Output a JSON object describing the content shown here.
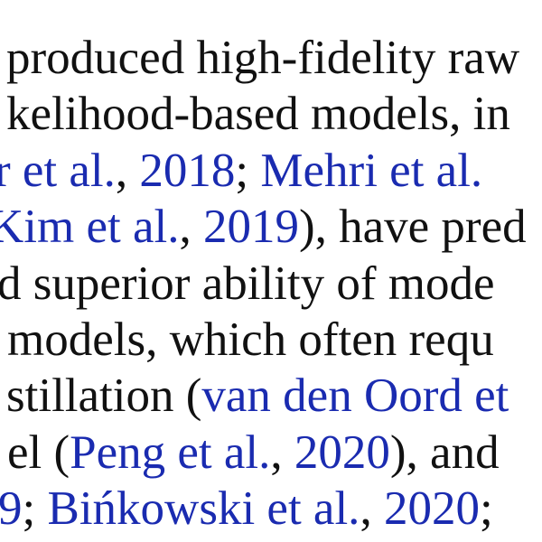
{
  "lines": [
    [
      {
        "text": "produced high-fidelity raw",
        "cite": false
      }
    ],
    [
      {
        "text": "kelihood-based models, in",
        "cite": false
      }
    ],
    [
      {
        "text": "r et al.",
        "cite": true
      },
      {
        "text": ", ",
        "cite": false
      },
      {
        "text": "2018",
        "cite": true
      },
      {
        "text": "; ",
        "cite": false
      },
      {
        "text": "Mehri et al.",
        "cite": true
      }
    ],
    [
      {
        "text": "Kim et al.",
        "cite": true
      },
      {
        "text": ", ",
        "cite": false
      },
      {
        "text": "2019",
        "cite": true
      },
      {
        "text": "), have pred",
        "cite": false
      }
    ],
    [
      {
        "text": "d superior ability of mode",
        "cite": false
      }
    ],
    [
      {
        "text": "models, which often requ",
        "cite": false
      }
    ],
    [
      {
        "text": "stillation (",
        "cite": false
      },
      {
        "text": "van den Oord et",
        "cite": true
      }
    ],
    [
      {
        "text": "el (",
        "cite": false
      },
      {
        "text": "Peng et al.",
        "cite": true
      },
      {
        "text": ", ",
        "cite": false
      },
      {
        "text": "2020",
        "cite": true
      },
      {
        "text": "), and",
        "cite": false
      }
    ],
    [
      {
        "text": "9",
        "cite": true
      },
      {
        "text": "; ",
        "cite": false
      },
      {
        "text": "Bińkowski et al.",
        "cite": true
      },
      {
        "text": ", ",
        "cite": false
      },
      {
        "text": "2020",
        "cite": true
      },
      {
        "text": ";",
        "cite": false
      }
    ]
  ],
  "colors": {
    "text": "#111111",
    "citation": "#1a2bb0",
    "background": "#ffffff"
  }
}
